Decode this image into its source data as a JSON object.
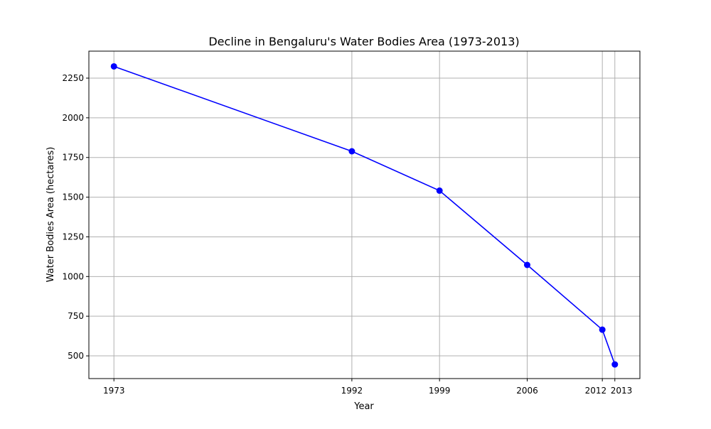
{
  "chart_data": {
    "type": "line",
    "title": "Decline in Bengaluru's Water Bodies Area (1973-2013)",
    "xlabel": "Year",
    "ylabel": "Water Bodies Area (hectares)",
    "x": [
      1973,
      1992,
      1999,
      2006,
      2012,
      2013
    ],
    "series": [
      {
        "name": "Water Bodies Area",
        "values": [
          2324,
          1789,
          1541,
          1073,
          665,
          446
        ],
        "color": "#0000ff",
        "marker": "circle"
      }
    ],
    "xticks": [
      "1973",
      "1992",
      "1999",
      "2006",
      "2012",
      "2013"
    ],
    "yticks": [
      "500",
      "750",
      "1000",
      "1250",
      "1500",
      "1750",
      "2000",
      "2250"
    ],
    "xlim": [
      1971,
      2015
    ],
    "ylim": [
      357,
      2420
    ],
    "grid": true,
    "legend": "none"
  }
}
